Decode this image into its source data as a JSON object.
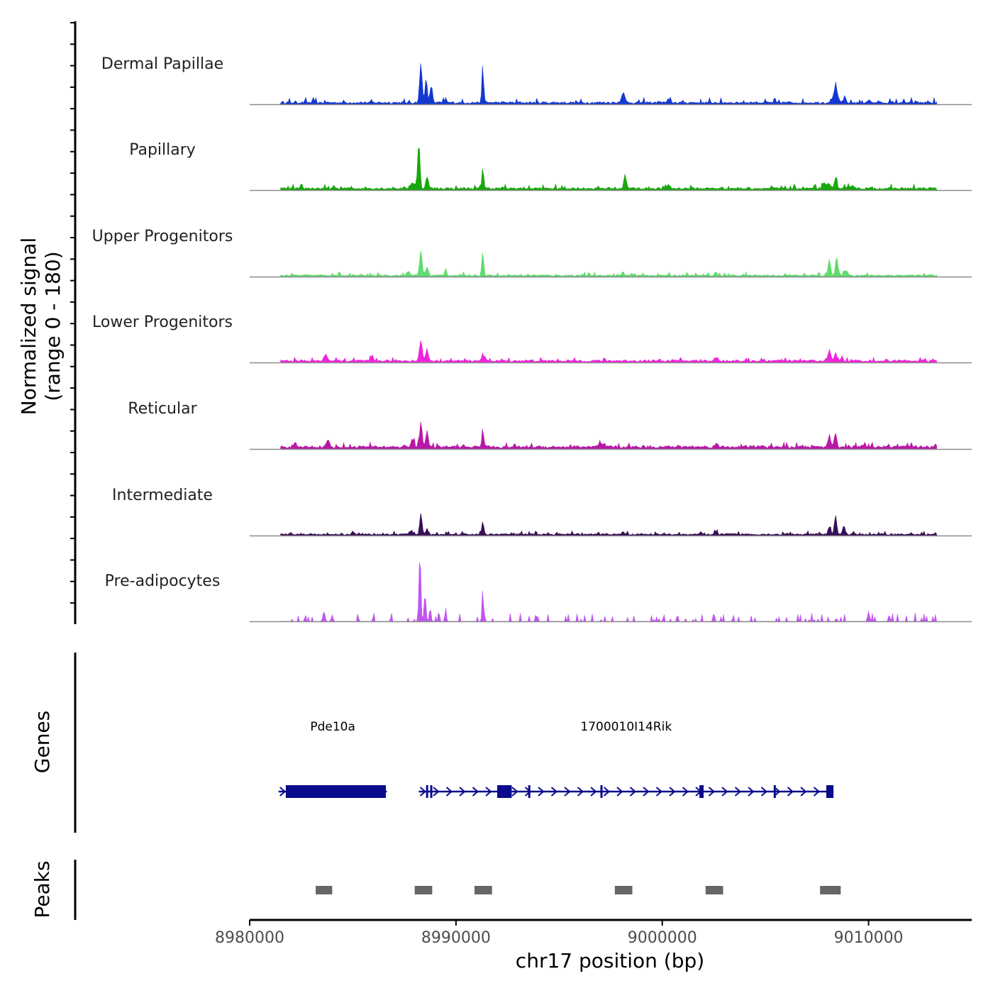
{
  "chart_data": {
    "type": "area",
    "title": "",
    "ylabel_line1": "Normalized signal",
    "ylabel_line2": "(range 0 - 180)",
    "ylim": [
      0,
      180
    ],
    "xlabel": "chr17 position (bp)",
    "xlim": [
      8980000,
      9015000
    ],
    "x_ticks": [
      {
        "value": 8980000,
        "label": "8980000"
      },
      {
        "value": 8990000,
        "label": "8990000"
      },
      {
        "value": 9000000,
        "label": "9000000"
      },
      {
        "value": 9010000,
        "label": "9010000"
      }
    ],
    "signal_range": [
      8981500,
      9013300
    ],
    "tracks": [
      {
        "name": "Dermal Papillae",
        "color": "#1438d0",
        "baseline": 4,
        "noise": 5,
        "peaks": [
          [
            8988300,
            70,
            60
          ],
          [
            8988550,
            45,
            50
          ],
          [
            8988800,
            30,
            60
          ],
          [
            8989500,
            8,
            40
          ],
          [
            8991300,
            60,
            45
          ],
          [
            8998100,
            18,
            80
          ],
          [
            9000300,
            6,
            60
          ],
          [
            9008200,
            8,
            60
          ],
          [
            9008400,
            38,
            55
          ],
          [
            9008800,
            6,
            60
          ],
          [
            9010000,
            5,
            60
          ]
        ]
      },
      {
        "name": "Papillary",
        "color": "#18a80c",
        "baseline": 4,
        "noise": 4,
        "peaks": [
          [
            8987900,
            10,
            120
          ],
          [
            8988200,
            82,
            55
          ],
          [
            8988600,
            22,
            60
          ],
          [
            8991300,
            38,
            45
          ],
          [
            8998200,
            27,
            55
          ],
          [
            9000300,
            7,
            70
          ],
          [
            9008000,
            8,
            150
          ],
          [
            9008400,
            20,
            60
          ],
          [
            9009200,
            6,
            100
          ]
        ]
      },
      {
        "name": "Upper Progenitors",
        "color": "#5fdc6e",
        "baseline": 3,
        "noise": 3,
        "peaks": [
          [
            8987700,
            7,
            80
          ],
          [
            8988300,
            45,
            60
          ],
          [
            8988600,
            15,
            60
          ],
          [
            8989500,
            14,
            40
          ],
          [
            8991300,
            42,
            45
          ],
          [
            8998100,
            6,
            50
          ],
          [
            9002600,
            6,
            60
          ],
          [
            9008100,
            30,
            60
          ],
          [
            9008450,
            33,
            55
          ],
          [
            9008900,
            10,
            80
          ]
        ]
      },
      {
        "name": "Lower Progenitors",
        "color": "#f024dc",
        "baseline": 4,
        "noise": 3,
        "peaks": [
          [
            8983700,
            12,
            70
          ],
          [
            8985900,
            6,
            60
          ],
          [
            8988300,
            35,
            70
          ],
          [
            8988600,
            20,
            60
          ],
          [
            8991300,
            15,
            50
          ],
          [
            9002600,
            6,
            80
          ],
          [
            9008100,
            20,
            60
          ],
          [
            9008400,
            15,
            60
          ],
          [
            9008700,
            7,
            60
          ]
        ]
      },
      {
        "name": "Reticular",
        "color": "#b818a6",
        "baseline": 5,
        "noise": 4,
        "peaks": [
          [
            8983800,
            12,
            70
          ],
          [
            8987900,
            15,
            70
          ],
          [
            8988300,
            45,
            60
          ],
          [
            8988600,
            30,
            60
          ],
          [
            8991300,
            35,
            45
          ],
          [
            8997000,
            6,
            80
          ],
          [
            9002600,
            5,
            80
          ],
          [
            9008100,
            22,
            60
          ],
          [
            9008400,
            25,
            60
          ],
          [
            9009800,
            6,
            60
          ]
        ]
      },
      {
        "name": "Intermediate",
        "color": "#380e58",
        "baseline": 3,
        "noise": 3,
        "peaks": [
          [
            8982000,
            4,
            60
          ],
          [
            8985000,
            5,
            60
          ],
          [
            8987800,
            6,
            70
          ],
          [
            8988300,
            38,
            55
          ],
          [
            8988600,
            10,
            60
          ],
          [
            8991300,
            24,
            45
          ],
          [
            8998100,
            6,
            60
          ],
          [
            9002600,
            5,
            60
          ],
          [
            9008100,
            14,
            60
          ],
          [
            9008400,
            35,
            55
          ],
          [
            9008800,
            15,
            60
          ]
        ]
      },
      {
        "name": "Pre-adipocytes",
        "color": "#c056f0",
        "baseline": 1,
        "noise": 2,
        "spiky": true,
        "peaks": [
          [
            8988250,
            120,
            45
          ],
          [
            8988500,
            50,
            45
          ],
          [
            8988750,
            25,
            40
          ],
          [
            8989500,
            25,
            35
          ],
          [
            8991300,
            60,
            35
          ],
          [
            8983600,
            18,
            50
          ],
          [
            8984000,
            12,
            40
          ],
          [
            9002500,
            15,
            40
          ],
          [
            9010000,
            18,
            45
          ],
          [
            9011000,
            12,
            40
          ]
        ]
      }
    ],
    "genes": [
      {
        "name": "Pde10a",
        "start": 8981400,
        "end": 8986650,
        "strand": "+",
        "exons": [
          [
            8981750,
            8986600
          ]
        ]
      },
      {
        "name": "1700010I14Rik",
        "start": 8988200,
        "end": 9008300,
        "strand": "+",
        "exons": [
          [
            8988550,
            8988600
          ],
          [
            8988750,
            8988820
          ],
          [
            8992000,
            8992700
          ],
          [
            8993500,
            8993570
          ],
          [
            8997000,
            8997080
          ],
          [
            9001800,
            9001860
          ],
          [
            9001900,
            9002000
          ],
          [
            9005400,
            9005460
          ],
          [
            9007950,
            9008300
          ]
        ]
      }
    ],
    "peaks": [
      {
        "start": 8983200,
        "end": 8984000
      },
      {
        "start": 8988000,
        "end": 8988850
      },
      {
        "start": 8990900,
        "end": 8991750
      },
      {
        "start": 8997700,
        "end": 8998550
      },
      {
        "start": 9002100,
        "end": 9002950
      },
      {
        "start": 9007650,
        "end": 9008650
      }
    ],
    "panel_labels": {
      "genes": "Genes",
      "peaks": "Peaks"
    }
  }
}
